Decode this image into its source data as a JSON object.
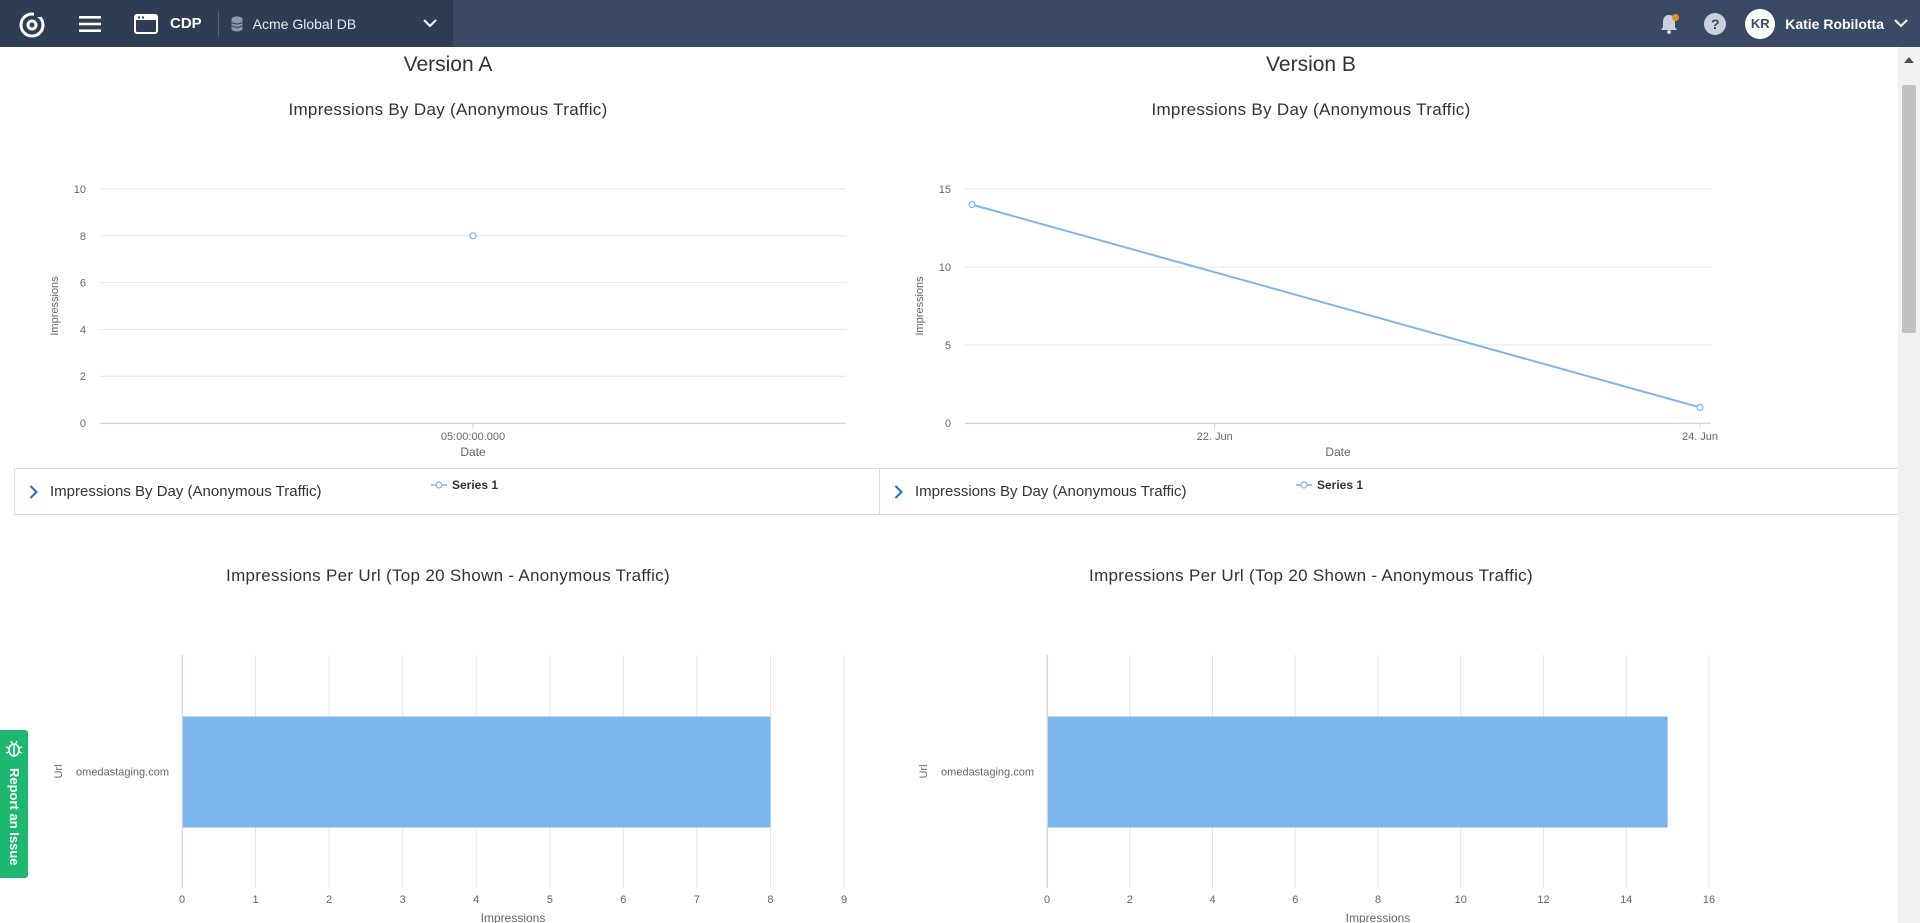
{
  "topbar": {
    "app_name": "CDP",
    "database": "Acme Global DB",
    "user_initials": "KR",
    "user_name": "Katie Robilotta",
    "help_label": "?"
  },
  "versions": {
    "a_title": "Version A",
    "b_title": "Version B"
  },
  "charts": {
    "a_line_title": "Impressions By Day (Anonymous Traffic)",
    "b_line_title": "Impressions By Day (Anonymous Traffic)",
    "a_bar_title": "Impressions Per Url (Top 20 Shown - Anonymous Traffic)",
    "b_bar_title": "Impressions Per Url (Top 20 Shown - Anonymous Traffic)"
  },
  "accordion": {
    "a_label": "Impressions By Day (Anonymous Traffic)",
    "b_label": "Impressions By Day (Anonymous Traffic)"
  },
  "report_issue": "Report an Issue",
  "colors": {
    "series": "#7cb5ec",
    "topbar": "#3a4a64",
    "report": "#1db870"
  },
  "chart_data": [
    {
      "type": "line",
      "title": "Impressions By Day (Anonymous Traffic)",
      "xlabel": "Date",
      "ylabel": "Impressions",
      "x": [
        "05:00:00.000"
      ],
      "series": [
        {
          "name": "Series 1",
          "values": [
            8
          ]
        }
      ],
      "ylim": [
        0,
        10
      ],
      "yticks": [
        0,
        2,
        4,
        6,
        8,
        10
      ],
      "legend": "bottom-center",
      "grid": true
    },
    {
      "type": "line",
      "title": "Impressions By Day (Anonymous Traffic)",
      "xlabel": "Date",
      "ylabel": "Impressions",
      "x": [
        "2024-06-21",
        "2024-06-24"
      ],
      "xticks": [
        "22. Jun",
        "24. Jun"
      ],
      "series": [
        {
          "name": "Series 1",
          "values": [
            14,
            1
          ]
        }
      ],
      "ylim": [
        0,
        15
      ],
      "yticks": [
        0,
        5,
        10,
        15
      ],
      "legend": "bottom-center",
      "grid": true
    },
    {
      "type": "bar",
      "title": "Impressions Per Url (Top 20 Shown - Anonymous Traffic)",
      "xlabel": "Impressions",
      "ylabel": "Url",
      "categories": [
        "omedastaging.com"
      ],
      "series": [
        {
          "name": "Series 1",
          "values": [
            8
          ]
        }
      ],
      "xlim": [
        0,
        9
      ],
      "xticks": [
        0,
        1,
        2,
        3,
        4,
        5,
        6,
        7,
        8,
        9
      ],
      "orientation": "horizontal",
      "legend": "bottom-center",
      "grid": true
    },
    {
      "type": "bar",
      "title": "Impressions Per Url (Top 20 Shown - Anonymous Traffic)",
      "xlabel": "Impressions",
      "ylabel": "Url",
      "categories": [
        "omedastaging.com"
      ],
      "series": [
        {
          "name": "Series 1",
          "values": [
            15
          ]
        }
      ],
      "xlim": [
        0,
        16
      ],
      "xticks": [
        0,
        2,
        4,
        6,
        8,
        10,
        12,
        14,
        16
      ],
      "orientation": "horizontal",
      "legend": "bottom-center",
      "grid": true
    }
  ]
}
